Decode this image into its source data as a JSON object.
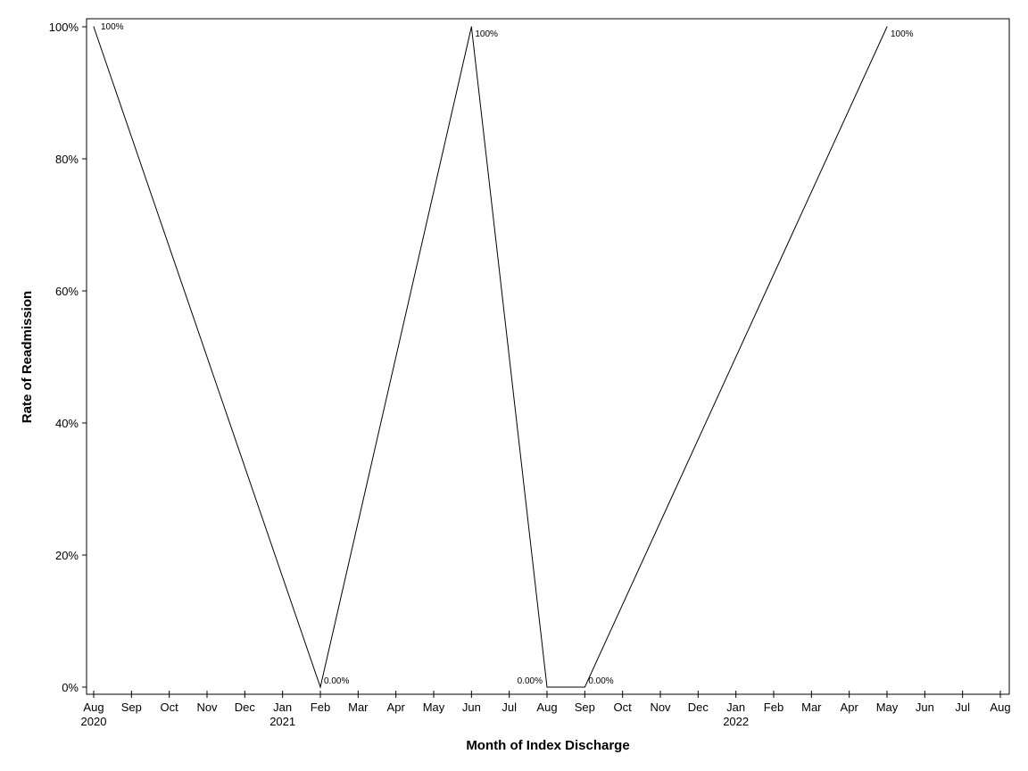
{
  "chart_data": {
    "type": "line",
    "xlabel": "Month of Index Discharge",
    "ylabel": "Rate of Readmission",
    "ylim": [
      0,
      100
    ],
    "y_unit": "%",
    "grid": false,
    "legend": "none",
    "line_color": "#000000",
    "y_ticks": [
      {
        "value": 0,
        "label": "0%"
      },
      {
        "value": 20,
        "label": "20%"
      },
      {
        "value": 40,
        "label": "40%"
      },
      {
        "value": 60,
        "label": "60%"
      },
      {
        "value": 80,
        "label": "80%"
      },
      {
        "value": 100,
        "label": "100%"
      }
    ],
    "x_ticks": [
      {
        "date": "2020-08",
        "label": "Aug",
        "year": "2020"
      },
      {
        "date": "2020-09",
        "label": "Sep"
      },
      {
        "date": "2020-10",
        "label": "Oct"
      },
      {
        "date": "2020-11",
        "label": "Nov"
      },
      {
        "date": "2020-12",
        "label": "Dec"
      },
      {
        "date": "2021-01",
        "label": "Jan",
        "year": "2021"
      },
      {
        "date": "2021-02",
        "label": "Feb"
      },
      {
        "date": "2021-03",
        "label": "Mar"
      },
      {
        "date": "2021-04",
        "label": "Apr"
      },
      {
        "date": "2021-05",
        "label": "May"
      },
      {
        "date": "2021-06",
        "label": "Jun"
      },
      {
        "date": "2021-07",
        "label": "Jul"
      },
      {
        "date": "2021-08",
        "label": "Aug"
      },
      {
        "date": "2021-09",
        "label": "Sep"
      },
      {
        "date": "2021-10",
        "label": "Oct"
      },
      {
        "date": "2021-11",
        "label": "Nov"
      },
      {
        "date": "2021-12",
        "label": "Dec"
      },
      {
        "date": "2022-01",
        "label": "Jan",
        "year": "2022"
      },
      {
        "date": "2022-02",
        "label": "Feb"
      },
      {
        "date": "2022-03",
        "label": "Mar"
      },
      {
        "date": "2022-04",
        "label": "Apr"
      },
      {
        "date": "2022-05",
        "label": "May"
      },
      {
        "date": "2022-06",
        "label": "Jun"
      },
      {
        "date": "2022-07",
        "label": "Jul"
      },
      {
        "date": "2022-08",
        "label": "Aug"
      }
    ],
    "series": [
      {
        "points": [
          {
            "x": "2020-08",
            "y": 100,
            "label": "100%"
          },
          {
            "x": "2021-02",
            "y": 0,
            "label": "0.00%"
          },
          {
            "x": "2021-06",
            "y": 100,
            "label": "100%"
          },
          {
            "x": "2021-08",
            "y": 0,
            "label": "0.00%"
          },
          {
            "x": "2021-09",
            "y": 0,
            "label": "0.00%"
          },
          {
            "x": "2022-05",
            "y": 100,
            "label": "100%"
          }
        ]
      }
    ]
  }
}
